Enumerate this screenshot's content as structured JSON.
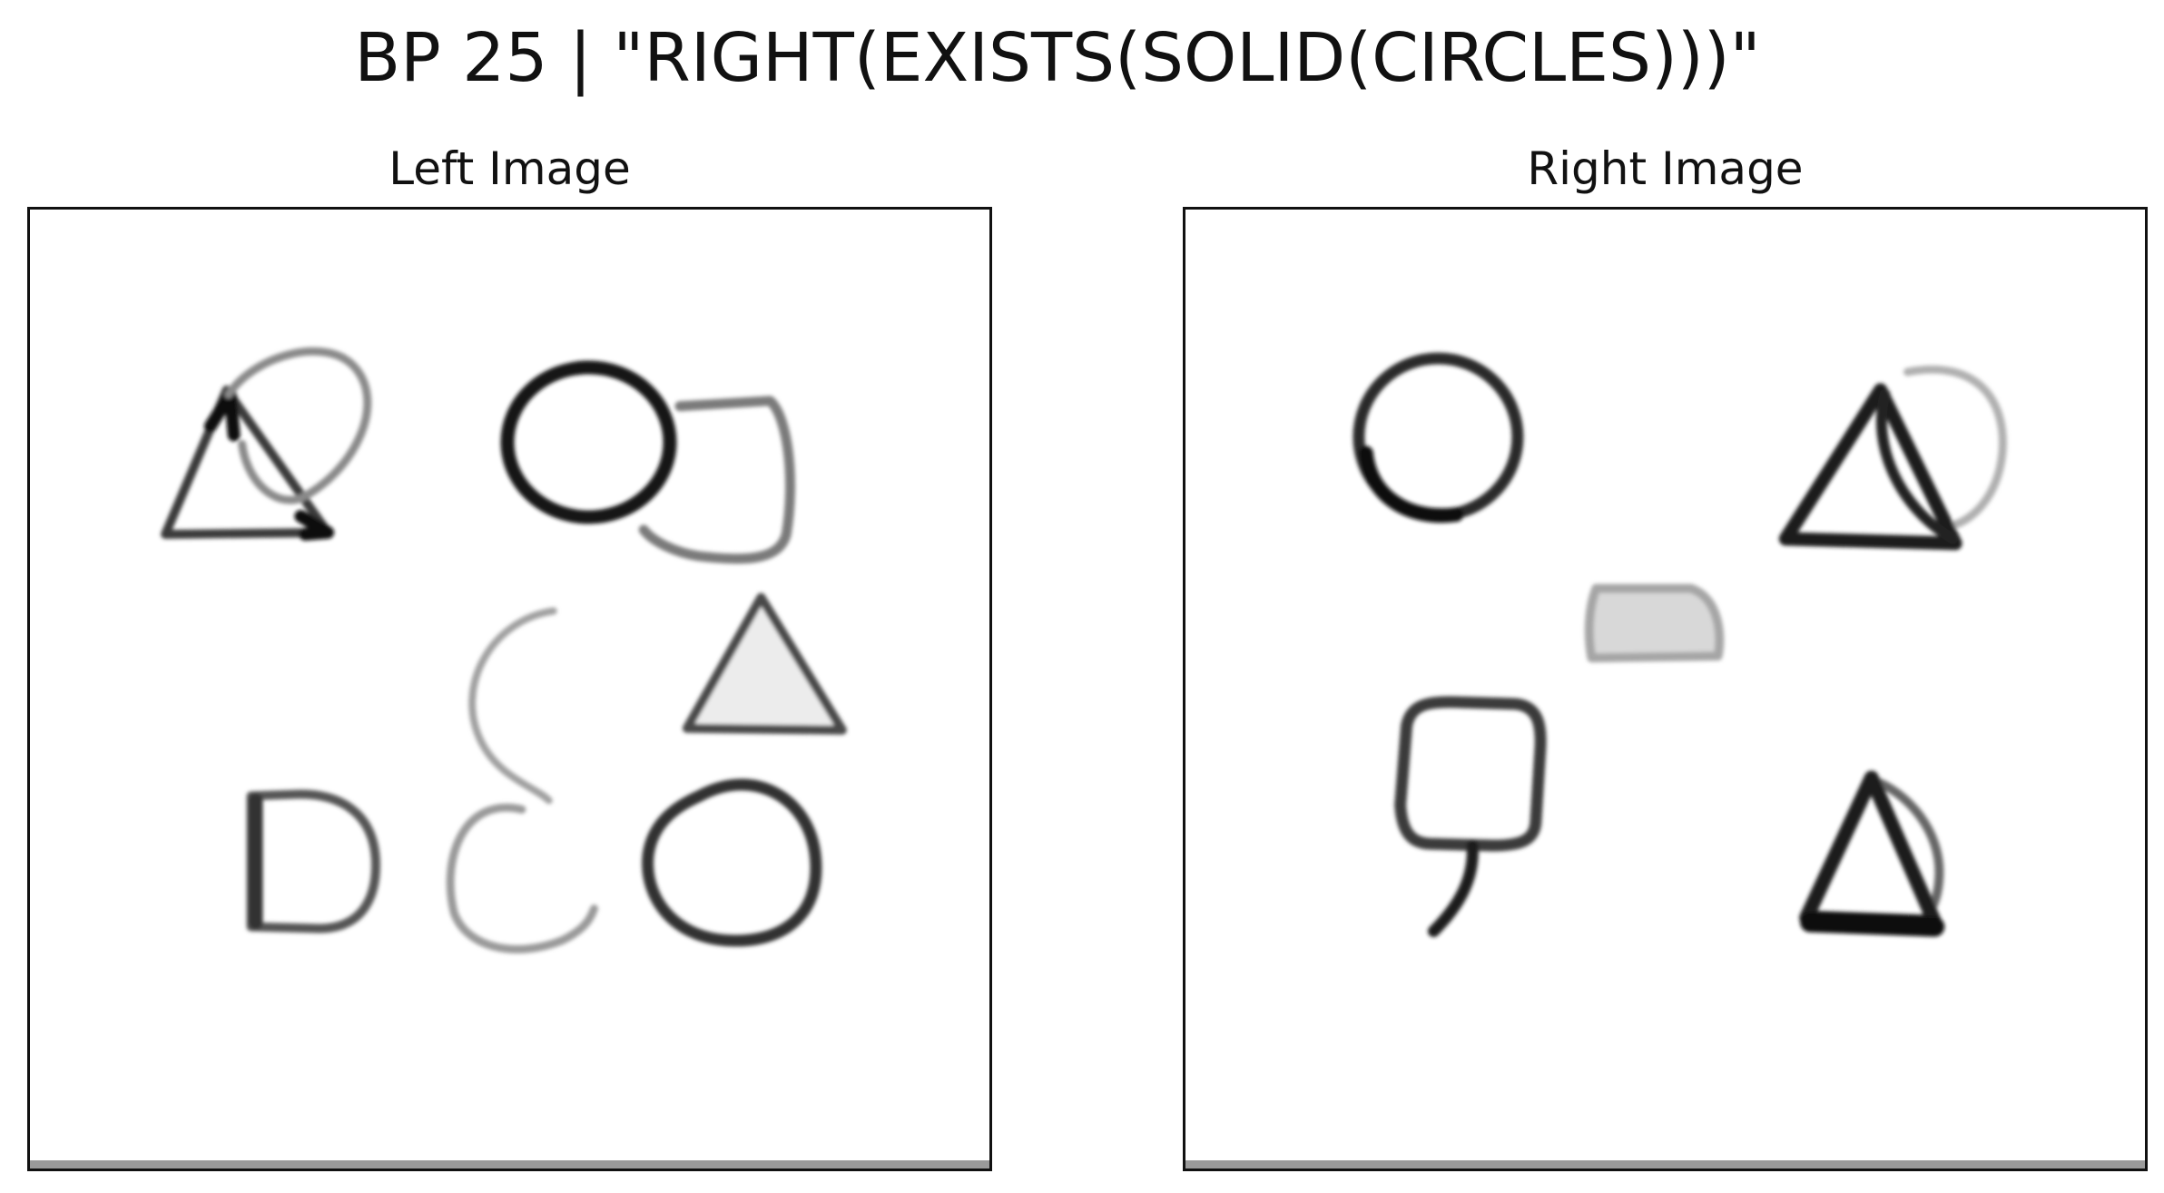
{
  "figure": {
    "title": "BP 25 | \"RIGHT(EXISTS(SOLID(CIRCLES)))\""
  },
  "panels": {
    "left": {
      "title": "Left Image",
      "shapes": [
        {
          "name": "triangle",
          "style": "outline"
        },
        {
          "name": "arc",
          "style": "outline"
        },
        {
          "name": "circle",
          "style": "outline"
        },
        {
          "name": "bracket",
          "style": "outline"
        },
        {
          "name": "arc",
          "style": "outline"
        },
        {
          "name": "triangle",
          "style": "outline"
        },
        {
          "name": "d-shape",
          "style": "outline"
        },
        {
          "name": "arc",
          "style": "outline"
        },
        {
          "name": "circle",
          "style": "outline"
        }
      ]
    },
    "right": {
      "title": "Right Image",
      "shapes": [
        {
          "name": "circle",
          "style": "outline"
        },
        {
          "name": "triangle",
          "style": "outline"
        },
        {
          "name": "arc",
          "style": "outline"
        },
        {
          "name": "trapezoid",
          "style": "solid"
        },
        {
          "name": "rounded-square",
          "style": "outline"
        },
        {
          "name": "hook",
          "style": "outline"
        },
        {
          "name": "triangle",
          "style": "outline"
        },
        {
          "name": "arc",
          "style": "outline"
        }
      ]
    }
  },
  "colors": {
    "stroke_dark": "#1a1a1a",
    "stroke_mid": "#555555",
    "stroke_light": "#a8a8a8",
    "fill_light": "#d6d6d6"
  }
}
